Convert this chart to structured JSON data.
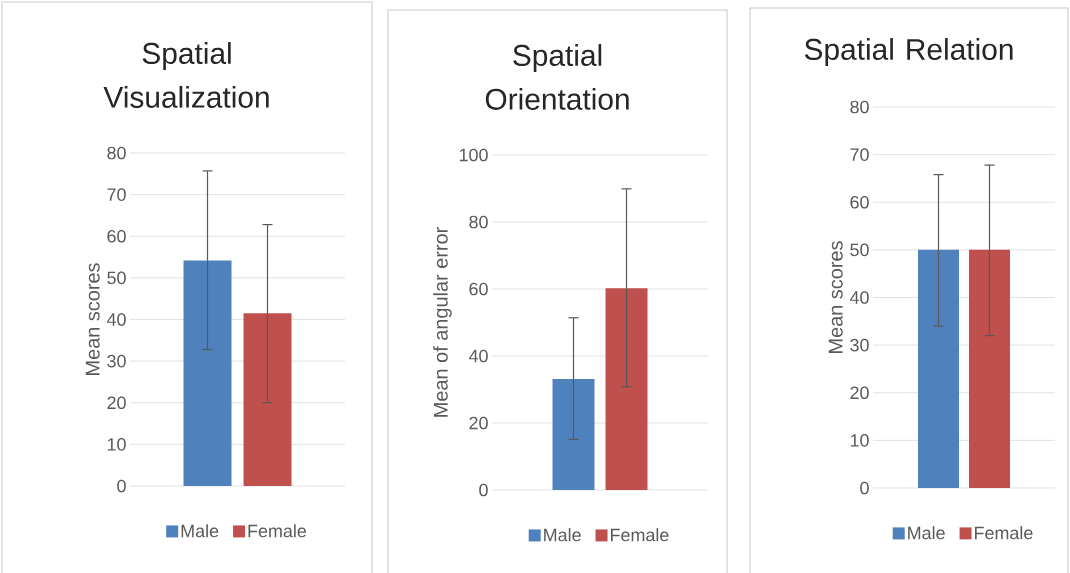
{
  "chart_data": [
    {
      "type": "bar",
      "title": "Spatial Visualization",
      "ylabel": "Mean scores",
      "categories": [
        null
      ],
      "series": [
        {
          "name": "Male",
          "color": "#4f81bd",
          "values": [
            54.2
          ],
          "errors": [
            [
              32.8,
              75.7
            ]
          ]
        },
        {
          "name": "Female",
          "color": "#c0504d",
          "values": [
            41.5
          ],
          "errors": [
            [
              20.0,
              62.8
            ]
          ]
        }
      ],
      "ylim": [
        0,
        80
      ],
      "yticks": [
        0,
        10,
        20,
        30,
        40,
        50,
        60,
        70,
        80
      ],
      "grid": "y",
      "legend": "bottom"
    },
    {
      "type": "bar",
      "title": "Spatial Orientation",
      "ylabel": "Mean of angular error",
      "categories": [
        null
      ],
      "series": [
        {
          "name": "Male",
          "color": "#4f81bd",
          "values": [
            33.1
          ],
          "errors": [
            [
              15.1,
              51.4
            ]
          ]
        },
        {
          "name": "Female",
          "color": "#c0504d",
          "values": [
            60.2
          ],
          "errors": [
            [
              30.8,
              89.9
            ]
          ]
        }
      ],
      "ylim": [
        0,
        100
      ],
      "yticks": [
        0,
        20,
        40,
        60,
        80,
        100
      ],
      "grid": "y",
      "legend": "bottom"
    },
    {
      "type": "bar",
      "title": "Spatial Relation",
      "ylabel": "Mean scores",
      "categories": [
        null
      ],
      "series": [
        {
          "name": "Male",
          "color": "#4f81bd",
          "values": [
            50.0
          ],
          "errors": [
            [
              34.0,
              65.8
            ]
          ]
        },
        {
          "name": "Female",
          "color": "#c0504d",
          "values": [
            50.0
          ],
          "errors": [
            [
              32.0,
              67.8
            ]
          ]
        }
      ],
      "ylim": [
        0,
        80
      ],
      "yticks": [
        0,
        10,
        20,
        30,
        40,
        50,
        60,
        70,
        80
      ],
      "grid": "y",
      "legend": "bottom"
    }
  ]
}
